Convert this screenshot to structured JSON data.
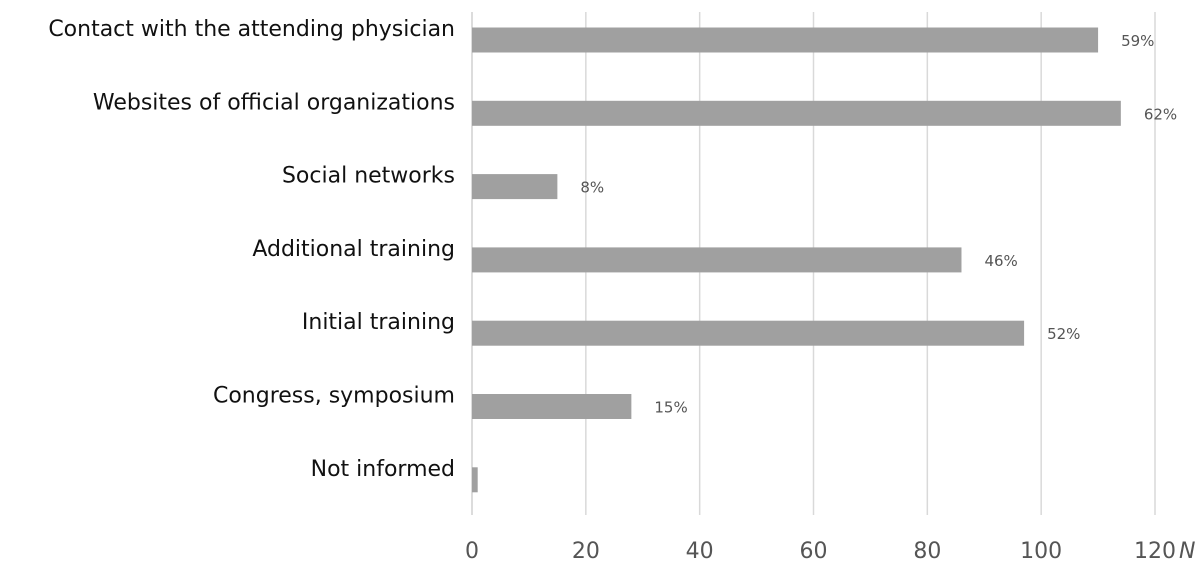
{
  "chart_data": {
    "type": "bar",
    "orientation": "horizontal",
    "title": "",
    "xlabel": "N",
    "ylabel": "",
    "xlim": [
      0,
      120
    ],
    "x_ticks": [
      0,
      20,
      40,
      60,
      80,
      100,
      120
    ],
    "x_tick_labels": [
      "0",
      "20",
      "40",
      "60",
      "80",
      "100",
      "120"
    ],
    "grid": true,
    "bar_color": "#a0a0a0",
    "categories": [
      "Contact with the attending physician",
      "Websites of official organizations",
      "Social networks",
      "Additional training",
      "Initial training",
      "Congress, symposium",
      "Not informed"
    ],
    "values": [
      110,
      114,
      15,
      86,
      97,
      28,
      1
    ],
    "data_labels": [
      "59%",
      "62%",
      "8%",
      "46%",
      "52%",
      "15%",
      ""
    ]
  }
}
